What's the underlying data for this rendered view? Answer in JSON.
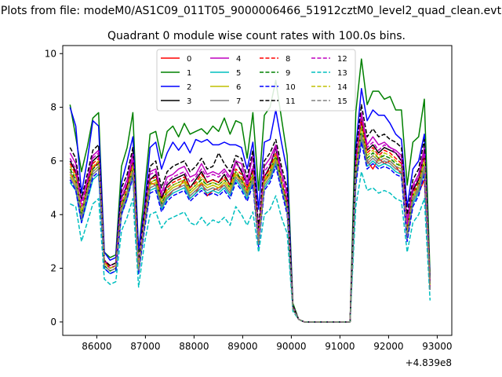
{
  "chart_data": {
    "type": "line",
    "suptitle": "Plots from file: modeM0/AS1C09_011T05_9000006466_51912cztM0_level2_quad_clean.evt",
    "title": "Quadrant 0 module wise count rates with 100.0s bins.",
    "xlabel": "",
    "ylabel": "",
    "x_offset_label": "+4.839e8",
    "xlim": [
      85300,
      93300
    ],
    "ylim": [
      -0.5,
      10.3
    ],
    "x_ticks": [
      86000,
      87000,
      88000,
      89000,
      90000,
      91000,
      92000,
      93000
    ],
    "x_tick_labels": [
      "86000",
      "87000",
      "88000",
      "89000",
      "90000",
      "91000",
      "92000",
      "93000"
    ],
    "y_ticks": [
      0,
      2,
      4,
      6,
      8,
      10
    ],
    "y_tick_labels": [
      "0",
      "2",
      "4",
      "6",
      "8",
      "10"
    ],
    "legend_position": "top-center",
    "series": [
      {
        "name": "0",
        "color": "#ff0000",
        "dash": "solid",
        "values": [
          5.6,
          5.2,
          4.0,
          5.0,
          5.7,
          6.0,
          2.3,
          2.0,
          2.1,
          4.3,
          4.8,
          5.7,
          2.0,
          3.7,
          5.2,
          5.1,
          4.3,
          4.6,
          4.9,
          5.0,
          5.3,
          4.6,
          4.8,
          5.2,
          4.7,
          4.9,
          5.0,
          5.1,
          4.8,
          5.5,
          5.3,
          5.0,
          5.4,
          3.0,
          5.2,
          5.6,
          6.0,
          5.0,
          4.4,
          0.5,
          0.1,
          0,
          0,
          0,
          0,
          0,
          0,
          0,
          0,
          0,
          6.2,
          7.5,
          6.0,
          5.7,
          6.1,
          5.9,
          6.0,
          5.8,
          5.5,
          3.5,
          5.0,
          4.8,
          5.3,
          1.3
        ]
      },
      {
        "name": "1",
        "color": "#008000",
        "dash": "solid",
        "values": [
          8.1,
          6.9,
          5.6,
          6.5,
          7.6,
          7.8,
          2.6,
          2.4,
          2.5,
          5.8,
          6.5,
          7.8,
          2.6,
          4.8,
          7.0,
          7.1,
          6.1,
          7.1,
          7.3,
          6.9,
          7.4,
          7.0,
          7.1,
          7.2,
          7.0,
          7.3,
          7.1,
          7.6,
          7.0,
          7.5,
          7.4,
          6.1,
          7.8,
          4.9,
          7.7,
          8.0,
          9.0,
          7.6,
          6.2,
          0.7,
          0.1,
          0,
          0,
          0,
          0,
          0,
          0,
          0,
          0,
          0,
          7.8,
          9.8,
          8.1,
          8.6,
          8.6,
          8.3,
          8.4,
          7.9,
          7.9,
          5.1,
          6.7,
          6.9,
          8.3,
          1.7
        ]
      },
      {
        "name": "2",
        "color": "#0000ff",
        "dash": "solid",
        "values": [
          8.0,
          7.3,
          4.8,
          6.0,
          7.5,
          7.3,
          2.6,
          2.3,
          2.4,
          5.2,
          6.0,
          6.9,
          2.7,
          4.2,
          6.5,
          6.7,
          5.7,
          6.3,
          6.7,
          6.4,
          6.7,
          6.3,
          6.8,
          6.7,
          6.8,
          6.6,
          6.6,
          6.7,
          6.6,
          6.6,
          6.5,
          5.7,
          6.7,
          4.2,
          6.7,
          6.8,
          7.9,
          6.7,
          5.6,
          0.6,
          0.1,
          0,
          0,
          0,
          0,
          0,
          0,
          0,
          0,
          0,
          6.5,
          8.7,
          7.5,
          7.9,
          7.7,
          7.7,
          7.4,
          7.0,
          6.8,
          4.3,
          5.7,
          6.0,
          7.0,
          1.5
        ]
      },
      {
        "name": "3",
        "color": "#000000",
        "dash": "solid",
        "values": [
          6.0,
          5.6,
          4.0,
          5.1,
          6.0,
          6.2,
          2.2,
          2.0,
          2.1,
          4.6,
          5.1,
          6.0,
          2.0,
          3.8,
          5.3,
          5.5,
          4.6,
          5.1,
          5.3,
          5.4,
          5.5,
          5.0,
          5.3,
          5.6,
          5.2,
          5.3,
          5.2,
          5.5,
          5.1,
          6.0,
          5.6,
          5.1,
          5.7,
          3.1,
          5.4,
          5.8,
          6.5,
          5.2,
          4.5,
          0.5,
          0.1,
          0,
          0,
          0,
          0,
          0,
          0,
          0,
          0,
          0,
          5.8,
          7.5,
          6.4,
          6.6,
          6.3,
          6.5,
          6.4,
          6.3,
          6.0,
          3.5,
          4.9,
          5.3,
          6.3,
          1.3
        ]
      },
      {
        "name": "4",
        "color": "#bf00bf",
        "dash": "solid",
        "values": [
          6.3,
          5.9,
          4.5,
          5.3,
          6.2,
          6.4,
          2.3,
          2.1,
          2.2,
          4.8,
          5.3,
          6.3,
          2.1,
          4.0,
          5.6,
          5.7,
          4.8,
          5.4,
          5.5,
          5.7,
          5.8,
          5.4,
          5.5,
          5.9,
          5.5,
          5.6,
          5.5,
          5.7,
          5.4,
          6.0,
          5.9,
          5.2,
          6.2,
          3.4,
          5.8,
          6.1,
          6.6,
          5.6,
          4.8,
          0.6,
          0.1,
          0,
          0,
          0,
          0,
          0,
          0,
          0,
          0,
          0,
          6.0,
          7.8,
          6.6,
          6.9,
          6.6,
          6.7,
          6.5,
          6.4,
          6.2,
          3.8,
          5.1,
          5.5,
          6.5,
          1.4
        ]
      },
      {
        "name": "5",
        "color": "#00bfbf",
        "dash": "solid",
        "values": [
          5.2,
          4.9,
          3.7,
          4.5,
          5.3,
          5.5,
          2.0,
          1.8,
          1.9,
          4.0,
          4.6,
          5.4,
          1.8,
          3.5,
          4.9,
          5.0,
          4.2,
          4.6,
          4.8,
          4.9,
          5.0,
          4.6,
          4.8,
          5.0,
          4.8,
          4.9,
          4.8,
          5.0,
          4.7,
          5.3,
          5.0,
          4.6,
          5.2,
          2.9,
          5.0,
          5.3,
          5.9,
          5.0,
          4.1,
          0.5,
          0.1,
          0,
          0,
          0,
          0,
          0,
          0,
          0,
          0,
          0,
          5.2,
          6.8,
          5.8,
          6.0,
          5.8,
          5.9,
          5.8,
          5.6,
          5.5,
          3.1,
          4.4,
          4.8,
          5.6,
          1.2
        ]
      },
      {
        "name": "6",
        "color": "#bfbf00",
        "dash": "solid",
        "values": [
          5.5,
          5.1,
          3.9,
          4.8,
          5.6,
          5.8,
          2.1,
          1.9,
          2.0,
          4.2,
          4.8,
          5.6,
          1.9,
          3.6,
          5.1,
          5.2,
          4.4,
          4.8,
          5.0,
          5.1,
          5.2,
          4.8,
          5.0,
          5.2,
          5.0,
          5.1,
          5.0,
          5.2,
          4.9,
          5.5,
          5.2,
          4.8,
          5.4,
          3.0,
          5.2,
          5.5,
          6.1,
          5.2,
          4.3,
          0.5,
          0.1,
          0,
          0,
          0,
          0,
          0,
          0,
          0,
          0,
          0,
          5.4,
          7.0,
          6.0,
          6.2,
          6.0,
          6.1,
          6.0,
          5.8,
          5.7,
          3.2,
          4.6,
          5.0,
          5.8,
          1.2
        ]
      },
      {
        "name": "7",
        "color": "#808080",
        "dash": "solid",
        "values": [
          5.4,
          5.0,
          3.8,
          4.7,
          5.5,
          5.7,
          2.1,
          1.9,
          2.0,
          4.1,
          4.7,
          5.5,
          1.9,
          3.5,
          5.0,
          5.1,
          4.3,
          4.7,
          4.9,
          5.0,
          5.1,
          4.7,
          4.9,
          5.1,
          4.9,
          5.0,
          4.9,
          5.1,
          4.8,
          5.4,
          5.1,
          4.7,
          5.3,
          2.9,
          5.1,
          5.4,
          6.0,
          5.1,
          4.2,
          0.5,
          0.1,
          0,
          0,
          0,
          0,
          0,
          0,
          0,
          0,
          0,
          5.3,
          6.9,
          5.9,
          6.1,
          5.9,
          6.0,
          5.9,
          5.7,
          5.6,
          3.1,
          4.5,
          4.9,
          5.7,
          1.2
        ]
      },
      {
        "name": "8",
        "color": "#ff0000",
        "dash": "dashed",
        "values": [
          5.9,
          5.5,
          4.1,
          5.0,
          5.9,
          6.1,
          2.2,
          2.0,
          2.1,
          4.4,
          5.0,
          5.9,
          2.0,
          3.8,
          5.3,
          5.4,
          4.5,
          5.0,
          5.2,
          5.3,
          5.4,
          5.0,
          5.2,
          5.5,
          5.2,
          5.3,
          5.2,
          5.4,
          5.1,
          5.7,
          5.5,
          4.9,
          5.6,
          3.1,
          5.4,
          5.7,
          6.3,
          5.3,
          4.4,
          0.5,
          0.1,
          0,
          0,
          0,
          0,
          0,
          0,
          0,
          0,
          0,
          5.7,
          7.6,
          6.3,
          6.5,
          6.2,
          6.4,
          6.3,
          6.1,
          5.9,
          3.4,
          4.8,
          5.2,
          6.1,
          1.3
        ]
      },
      {
        "name": "9",
        "color": "#008000",
        "dash": "dashed",
        "values": [
          5.7,
          5.3,
          4.0,
          4.9,
          5.7,
          5.9,
          2.1,
          1.9,
          2.0,
          4.3,
          4.9,
          5.7,
          1.9,
          3.7,
          5.2,
          5.3,
          4.4,
          4.9,
          5.1,
          5.2,
          5.3,
          4.9,
          5.1,
          5.3,
          5.1,
          5.2,
          5.1,
          5.3,
          5.0,
          5.6,
          5.3,
          4.8,
          5.5,
          3.0,
          5.3,
          5.6,
          6.2,
          5.2,
          4.3,
          0.5,
          0.1,
          0,
          0,
          0,
          0,
          0,
          0,
          0,
          0,
          0,
          5.5,
          7.2,
          6.1,
          6.3,
          6.1,
          6.2,
          6.1,
          5.9,
          5.8,
          3.3,
          4.7,
          5.1,
          6.0,
          1.3
        ]
      },
      {
        "name": "10",
        "color": "#0000ff",
        "dash": "dashed",
        "values": [
          5.3,
          4.9,
          3.7,
          4.6,
          5.4,
          5.6,
          2.0,
          1.8,
          1.9,
          4.0,
          4.6,
          5.4,
          1.8,
          3.4,
          4.8,
          4.9,
          4.1,
          4.5,
          4.7,
          4.8,
          4.9,
          4.5,
          4.7,
          4.9,
          4.7,
          4.8,
          4.7,
          4.9,
          4.6,
          5.2,
          4.9,
          4.5,
          5.1,
          2.8,
          4.9,
          5.2,
          5.8,
          4.9,
          4.0,
          0.5,
          0.1,
          0,
          0,
          0,
          0,
          0,
          0,
          0,
          0,
          0,
          5.1,
          6.7,
          5.7,
          5.9,
          5.7,
          5.8,
          5.7,
          5.5,
          5.4,
          3.0,
          4.3,
          4.7,
          5.5,
          1.2
        ]
      },
      {
        "name": "11",
        "color": "#000000",
        "dash": "dashed",
        "values": [
          6.5,
          6.1,
          4.6,
          5.5,
          6.4,
          6.6,
          2.3,
          2.1,
          2.2,
          5.0,
          5.5,
          6.5,
          2.2,
          4.1,
          5.8,
          6.0,
          5.0,
          5.6,
          5.8,
          5.9,
          6.0,
          5.6,
          5.8,
          6.1,
          5.7,
          5.8,
          6.3,
          5.9,
          5.6,
          6.2,
          6.1,
          5.4,
          6.4,
          3.5,
          6.0,
          6.3,
          6.8,
          5.8,
          5.0,
          0.6,
          0.1,
          0,
          0,
          0,
          0,
          0,
          0,
          0,
          0,
          0,
          6.3,
          8.1,
          6.9,
          7.2,
          6.9,
          7.0,
          6.8,
          6.7,
          6.5,
          4.0,
          5.3,
          5.7,
          6.8,
          1.4
        ]
      },
      {
        "name": "12",
        "color": "#bf00bf",
        "dash": "dashed",
        "values": [
          6.1,
          5.7,
          4.3,
          5.2,
          6.1,
          6.3,
          2.2,
          2.0,
          2.1,
          4.6,
          5.2,
          6.1,
          2.1,
          3.9,
          5.5,
          5.6,
          4.7,
          5.2,
          5.4,
          5.5,
          5.6,
          5.2,
          5.4,
          5.7,
          5.4,
          5.5,
          5.4,
          5.6,
          5.3,
          5.9,
          5.7,
          5.1,
          5.8,
          3.2,
          5.6,
          5.9,
          6.5,
          5.5,
          4.6,
          0.5,
          0.1,
          0,
          0,
          0,
          0,
          0,
          0,
          0,
          0,
          0,
          5.9,
          7.7,
          6.5,
          6.7,
          6.4,
          6.6,
          6.5,
          6.3,
          6.1,
          3.6,
          5.0,
          5.4,
          6.3,
          1.3
        ]
      },
      {
        "name": "13",
        "color": "#00bfbf",
        "dash": "dashed",
        "values": [
          4.4,
          4.3,
          3.0,
          3.7,
          4.4,
          4.6,
          1.6,
          1.4,
          1.5,
          3.4,
          3.9,
          4.6,
          1.3,
          2.9,
          4.0,
          4.1,
          3.5,
          3.8,
          3.9,
          4.0,
          4.1,
          3.7,
          3.6,
          3.9,
          3.6,
          3.8,
          3.7,
          3.9,
          3.6,
          4.3,
          4.0,
          3.6,
          4.1,
          2.6,
          4.0,
          4.2,
          4.7,
          3.9,
          3.3,
          0.4,
          0.1,
          0,
          0,
          0,
          0,
          0,
          0,
          0,
          0,
          0,
          4.3,
          5.6,
          4.9,
          5.0,
          4.8,
          4.9,
          4.8,
          4.6,
          4.5,
          2.6,
          3.7,
          4.0,
          4.6,
          0.8
        ]
      },
      {
        "name": "14",
        "color": "#bfbf00",
        "dash": "dashed",
        "values": [
          5.8,
          5.4,
          4.1,
          4.9,
          5.8,
          6.0,
          2.2,
          2.0,
          2.1,
          4.4,
          4.9,
          5.8,
          2.0,
          3.7,
          5.2,
          5.3,
          4.5,
          4.9,
          5.1,
          5.2,
          5.3,
          4.9,
          5.1,
          5.4,
          5.1,
          5.2,
          5.1,
          5.3,
          5.0,
          5.6,
          5.4,
          4.8,
          5.5,
          3.0,
          5.3,
          5.6,
          6.2,
          5.2,
          4.3,
          0.5,
          0.1,
          0,
          0,
          0,
          0,
          0,
          0,
          0,
          0,
          0,
          5.6,
          7.3,
          6.2,
          6.4,
          6.1,
          6.3,
          6.2,
          6.0,
          5.8,
          3.3,
          4.7,
          5.1,
          6.0,
          1.3
        ]
      },
      {
        "name": "15",
        "color": "#808080",
        "dash": "dashed",
        "values": [
          5.6,
          5.2,
          3.9,
          4.8,
          5.6,
          5.8,
          2.1,
          1.9,
          2.0,
          4.2,
          4.8,
          5.6,
          1.9,
          3.6,
          5.0,
          5.1,
          4.3,
          4.7,
          4.9,
          5.0,
          5.1,
          4.7,
          4.9,
          5.1,
          4.9,
          5.0,
          4.9,
          5.1,
          4.8,
          5.4,
          5.2,
          4.7,
          5.3,
          2.9,
          5.1,
          5.4,
          6.0,
          5.1,
          4.2,
          0.5,
          0.1,
          0,
          0,
          0,
          0,
          0,
          0,
          0,
          0,
          0,
          5.4,
          7.0,
          6.0,
          6.2,
          6.0,
          6.1,
          6.0,
          5.8,
          5.7,
          3.2,
          4.6,
          5.0,
          5.8,
          1.2
        ]
      }
    ],
    "x_start": 85450,
    "x_step": 117.5
  }
}
